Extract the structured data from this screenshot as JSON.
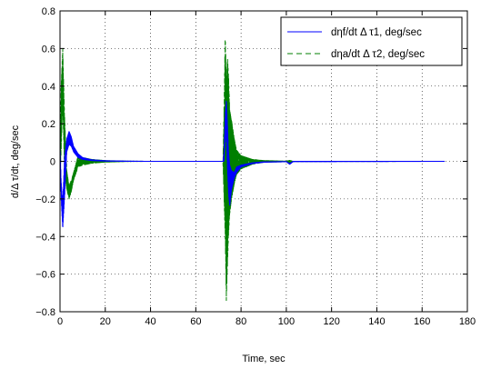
{
  "chart_data": {
    "type": "line",
    "xlabel": "Time, sec",
    "ylabel": "d/Δ τ/dt, deg/sec",
    "xlim": [
      0,
      180
    ],
    "ylim": [
      -0.8,
      0.8
    ],
    "xticks": [
      "0",
      "20",
      "40",
      "60",
      "80",
      "100",
      "120",
      "140",
      "160",
      "180"
    ],
    "yticks": [
      "−0.8",
      "−0.6",
      "−0.4",
      "−0.2",
      "0",
      "0.2",
      "0.4",
      "0.6",
      "0.8"
    ],
    "grid": true,
    "legend_position": "top-right",
    "series": [
      {
        "name": "dηf/dt Δ τ1, deg/sec",
        "color": "#0000ff",
        "style": "solid",
        "upper_envelope": [
          [
            0,
            0.1
          ],
          [
            0.5,
            -0.1
          ],
          [
            1.2,
            -0.22
          ],
          [
            2,
            0.02
          ],
          [
            3,
            0.12
          ],
          [
            4,
            0.16
          ],
          [
            5,
            0.13
          ],
          [
            6,
            0.08
          ],
          [
            8,
            0.04
          ],
          [
            10,
            0.02
          ],
          [
            14,
            0.008
          ],
          [
            20,
            0.003
          ],
          [
            30,
            0.001
          ],
          [
            40,
            0
          ],
          [
            72,
            0
          ],
          [
            72.5,
            0.05
          ],
          [
            73,
            0.25
          ],
          [
            73.5,
            0.33
          ],
          [
            74,
            0.2
          ],
          [
            74.5,
            0.05
          ],
          [
            75,
            -0.02
          ],
          [
            75.8,
            -0.05
          ],
          [
            77,
            -0.06
          ],
          [
            78,
            -0.03
          ],
          [
            80,
            -0.02
          ],
          [
            85,
            -0.008
          ],
          [
            90,
            -0.003
          ],
          [
            100,
            -0.001
          ],
          [
            101.5,
            -0.012
          ],
          [
            103,
            0
          ],
          [
            170,
            0
          ]
        ],
        "lower_envelope": [
          [
            0,
            0.05
          ],
          [
            0.5,
            -0.2
          ],
          [
            1.2,
            -0.36
          ],
          [
            2,
            -0.2
          ],
          [
            3,
            0.05
          ],
          [
            4,
            0.09
          ],
          [
            5,
            0.08
          ],
          [
            6,
            0.05
          ],
          [
            8,
            0.02
          ],
          [
            10,
            0.01
          ],
          [
            14,
            0.004
          ],
          [
            20,
            0.001
          ],
          [
            30,
            0
          ],
          [
            40,
            0
          ],
          [
            72,
            0
          ],
          [
            72.5,
            0
          ],
          [
            73,
            0.1
          ],
          [
            73.5,
            0.15
          ],
          [
            74,
            -0.05
          ],
          [
            74.5,
            -0.18
          ],
          [
            75,
            -0.24
          ],
          [
            75.8,
            -0.15
          ],
          [
            77,
            -0.09
          ],
          [
            78,
            -0.06
          ],
          [
            80,
            -0.03
          ],
          [
            85,
            -0.012
          ],
          [
            90,
            -0.005
          ],
          [
            100,
            -0.002
          ],
          [
            101.5,
            -0.016
          ],
          [
            103,
            -0.002
          ],
          [
            170,
            0
          ]
        ]
      },
      {
        "name": "dηa/dt Δ τ2, deg/sec",
        "color": "#007f00",
        "style": "dashed",
        "upper_envelope": [
          [
            0,
            0.1
          ],
          [
            0.5,
            0.4
          ],
          [
            1.2,
            0.6
          ],
          [
            2,
            0.25
          ],
          [
            3,
            -0.05
          ],
          [
            4,
            -0.13
          ],
          [
            5,
            -0.1
          ],
          [
            6,
            -0.06
          ],
          [
            8,
            0.03
          ],
          [
            10,
            0.02
          ],
          [
            14,
            0.01
          ],
          [
            20,
            0.004
          ],
          [
            30,
            0.001
          ],
          [
            40,
            0
          ],
          [
            72,
            0
          ],
          [
            72.5,
            0.3
          ],
          [
            73,
            0.68
          ],
          [
            73.5,
            0.4
          ],
          [
            74,
            0.55
          ],
          [
            74.5,
            0.45
          ],
          [
            75,
            0.27
          ],
          [
            75.8,
            0.22
          ],
          [
            77,
            0.12
          ],
          [
            78,
            0.06
          ],
          [
            80,
            0.03
          ],
          [
            85,
            0.01
          ],
          [
            90,
            0.004
          ],
          [
            100,
            0.001
          ],
          [
            101.5,
            0.005
          ],
          [
            103,
            0
          ],
          [
            170,
            0
          ]
        ],
        "lower_envelope": [
          [
            0,
            -0.1
          ],
          [
            0.5,
            0.05
          ],
          [
            1.2,
            0.3
          ],
          [
            2,
            -0.05
          ],
          [
            3,
            -0.15
          ],
          [
            4,
            -0.2
          ],
          [
            5,
            -0.16
          ],
          [
            6,
            -0.1
          ],
          [
            8,
            -0.03
          ],
          [
            10,
            -0.02
          ],
          [
            14,
            -0.01
          ],
          [
            20,
            -0.004
          ],
          [
            30,
            -0.001
          ],
          [
            40,
            0
          ],
          [
            72,
            0
          ],
          [
            72.5,
            -0.2
          ],
          [
            73,
            -0.4
          ],
          [
            73.5,
            -0.74
          ],
          [
            74,
            -0.55
          ],
          [
            74.5,
            -0.38
          ],
          [
            75,
            -0.28
          ],
          [
            75.8,
            -0.2
          ],
          [
            77,
            -0.12
          ],
          [
            78,
            -0.07
          ],
          [
            80,
            -0.04
          ],
          [
            85,
            -0.015
          ],
          [
            90,
            -0.005
          ],
          [
            100,
            -0.002
          ],
          [
            101.5,
            -0.01
          ],
          [
            103,
            -0.001
          ],
          [
            170,
            0
          ]
        ]
      }
    ]
  }
}
